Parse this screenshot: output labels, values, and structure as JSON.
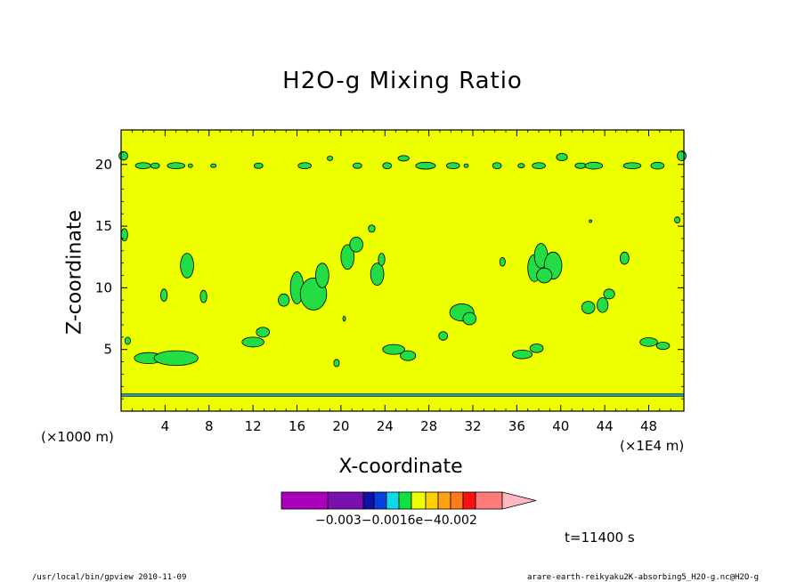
{
  "chart_data": {
    "type": "heatmap",
    "title": "H2O-g Mixing Ratio",
    "xlabel": "X-coordinate",
    "ylabel": "Z-coordinate",
    "x_unit": "(×1E4 m)",
    "y_unit": "(×1000 m)",
    "x_ticks": [
      "4",
      "8",
      "12",
      "16",
      "20",
      "24",
      "28",
      "32",
      "36",
      "40",
      "44",
      "48"
    ],
    "y_ticks": [
      "5",
      "10",
      "15",
      "20"
    ],
    "xlim": [
      0,
      51.2
    ],
    "ylim": [
      0,
      22.8
    ],
    "background_value_color": "#eeff00",
    "patch_color": "#22dd44",
    "colorbar": {
      "colors": [
        "#aa00bb",
        "#7a10b0",
        "#1010a8",
        "#0840e0",
        "#10d8e8",
        "#10e040",
        "#eeff00",
        "#ffd000",
        "#ffa010",
        "#ff7a1a",
        "#ff1010",
        "#ff7a7a",
        "#ffb8c0"
      ],
      "tick_labels": "−0.003−0.0016e−40.002"
    },
    "features": [
      {
        "kind": "band",
        "z": [
          19.6,
          20.2
        ],
        "note": "dotted cloud layer near z=20"
      },
      {
        "kind": "band",
        "z": [
          1.2,
          1.4
        ]
      }
    ],
    "time_label": "t=11400 s"
  },
  "footer": {
    "left": "/usr/local/bin/gpview  2010-11-09",
    "right": "arare-earth-reikyaku2K-absorbing5_H2O-g.nc@H2O-g"
  }
}
